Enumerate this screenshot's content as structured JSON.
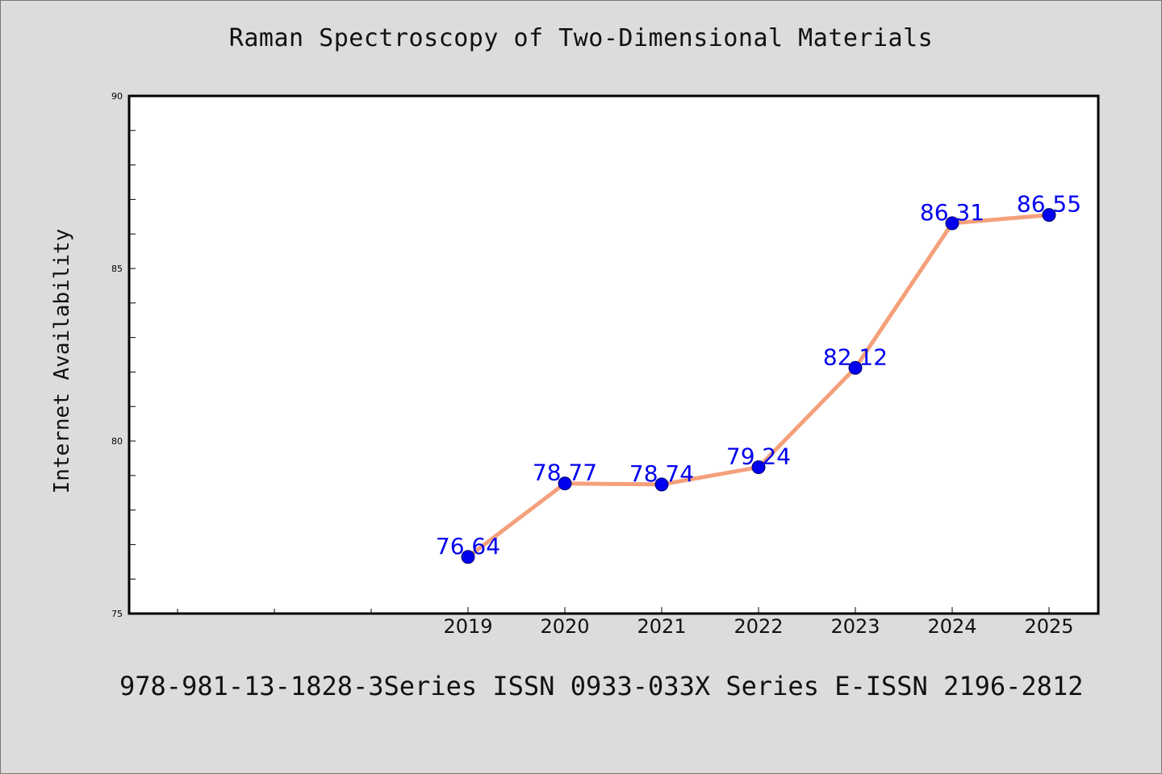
{
  "page": {
    "footer": "978-981-13-1828-3Series ISSN 0933-033X Series E-ISSN 2196-2812"
  },
  "chart_data": {
    "type": "line",
    "title": "Raman Spectroscopy of Two-Dimensional Materials",
    "xlabel": "",
    "ylabel": "Internet Availability",
    "categories": [
      "2019",
      "2020",
      "2021",
      "2022",
      "2023",
      "2024",
      "2025"
    ],
    "series": [
      {
        "values": [
          76.64,
          78.77,
          78.74,
          79.24,
          82.12,
          86.31,
          86.55
        ],
        "line_color": "#f4a07c",
        "marker_color": "#0000ee"
      }
    ],
    "data_labels": [
      "76.64",
      "78.77",
      "78.74",
      "79.24",
      "82.12",
      "86.31",
      "86.55"
    ],
    "data_label_color": "#0000ee",
    "ylim": [
      75,
      90
    ],
    "yticks": [
      75,
      80,
      85,
      90
    ],
    "grid": false,
    "legend": "none"
  }
}
